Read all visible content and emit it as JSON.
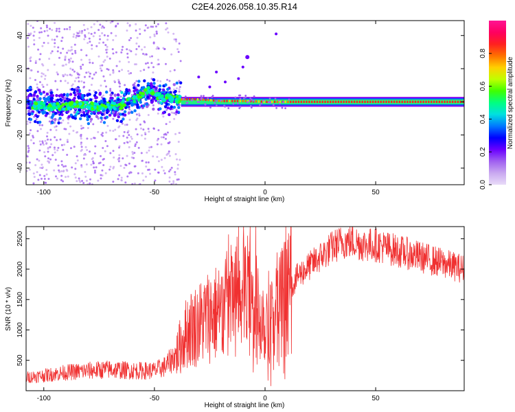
{
  "title": "C2E4.2026.058.10.35.R14",
  "chart_data": [
    {
      "type": "heatmap",
      "title": "C2E4.2026.058.10.35.R14",
      "xlabel": "Height of straight line (km)",
      "ylabel": "Frequency (Hz)",
      "xlim": [
        -108,
        90
      ],
      "ylim": [
        -50,
        49
      ],
      "x_ticks": [
        -100,
        -50,
        0,
        50
      ],
      "y_ticks": [
        -40,
        -20,
        0,
        20,
        40
      ],
      "x_tick_labels": [
        "-100",
        "-50",
        "0",
        "50"
      ],
      "y_tick_labels": [
        "-40",
        "-20",
        "0",
        "20",
        "40"
      ],
      "grid": false,
      "description_trace": [
        {
          "x": -105,
          "f": -2
        },
        {
          "x": -95,
          "f": -3
        },
        {
          "x": -85,
          "f": -2
        },
        {
          "x": -75,
          "f": -3
        },
        {
          "x": -65,
          "f": -2
        },
        {
          "x": -58,
          "f": 2
        },
        {
          "x": -53,
          "f": 7
        },
        {
          "x": -48,
          "f": 3
        },
        {
          "x": -40,
          "f": 1.5
        },
        {
          "x": -30,
          "f": 1.5
        },
        {
          "x": -20,
          "f": 0.5
        },
        {
          "x": -10,
          "f": 0.5
        },
        {
          "x": 0,
          "f": 0
        },
        {
          "x": 10,
          "f": 0
        },
        {
          "x": 50,
          "f": 0
        },
        {
          "x": 90,
          "f": 0
        }
      ],
      "colorbar": {
        "label": "Normalized spectral amplitude",
        "range": [
          0,
          1
        ],
        "ticks": [
          0.0,
          0.2,
          0.4,
          0.6,
          0.8
        ],
        "tick_labels": [
          "0.0",
          "0.2",
          "0.4",
          "0.6",
          "0.8"
        ],
        "colors": [
          "#e8dcf8",
          "#c9a8f0",
          "#a060f0",
          "#6a00ff",
          "#0000ff",
          "#0078ff",
          "#00e0e0",
          "#00ff80",
          "#40ff00",
          "#c0ff00",
          "#ffd000",
          "#ff7000",
          "#ff2020",
          "#ff0060",
          "#ff1493"
        ]
      }
    },
    {
      "type": "line",
      "xlabel": "Height of straight line (km)",
      "ylabel": "SNR (10 * v/v)",
      "xlim": [
        -108,
        90
      ],
      "ylim": [
        0,
        2700
      ],
      "x_ticks": [
        -100,
        -50,
        0,
        50
      ],
      "y_ticks": [
        500,
        1000,
        1500,
        2000,
        2500
      ],
      "x_tick_labels": [
        "-100",
        "-50",
        "0",
        "50"
      ],
      "y_tick_labels": [
        "500",
        "1000",
        "1500",
        "2000",
        "2500"
      ],
      "grid": false,
      "line_color": "#f03030",
      "series": [
        {
          "name": "SNR",
          "x": [
            -108,
            -100,
            -90,
            -80,
            -70,
            -60,
            -50,
            -45,
            -40,
            -35,
            -30,
            -25,
            -20,
            -15,
            -10,
            -5,
            0,
            5,
            10,
            15,
            20,
            25,
            30,
            35,
            40,
            45,
            50,
            55,
            60,
            65,
            70,
            75,
            80,
            85,
            90
          ],
          "y": [
            220,
            250,
            300,
            330,
            350,
            330,
            330,
            400,
            600,
            1000,
            1100,
            1250,
            1300,
            1500,
            1700,
            1400,
            1200,
            1300,
            1600,
            1900,
            2050,
            2200,
            2350,
            2450,
            2450,
            2400,
            2400,
            2350,
            2300,
            2250,
            2200,
            2150,
            2100,
            2050,
            2000
          ]
        }
      ]
    }
  ]
}
